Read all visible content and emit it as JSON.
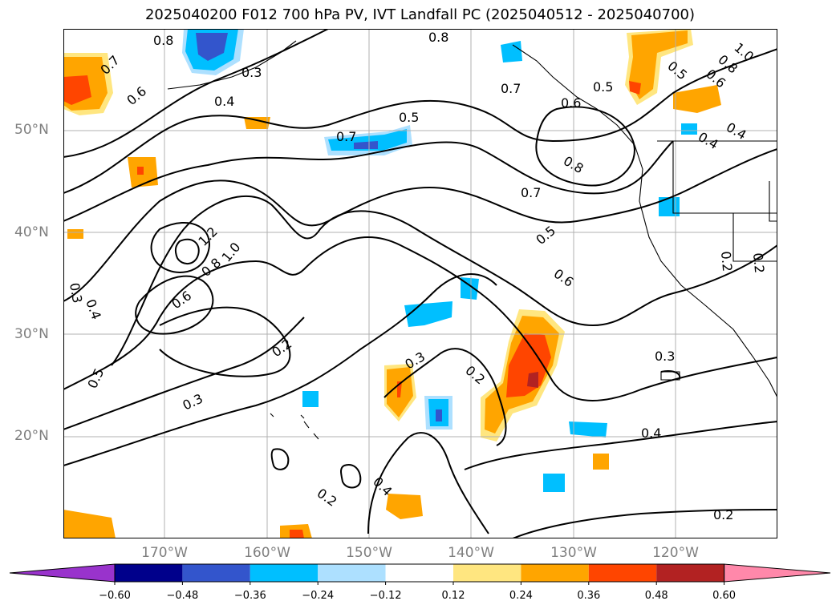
{
  "title": "2025040200 F012 700 hPa PV, IVT Landfall PC (2025040512 - 2025040700)",
  "lat_ticks": [
    "50°N",
    "40°N",
    "30°N",
    "20°N"
  ],
  "lon_ticks": [
    "170°W",
    "160°W",
    "150°W",
    "140°W",
    "130°W",
    "120°W"
  ],
  "contour_labels": [
    {
      "text": "0.8"
    },
    {
      "text": "0.7"
    },
    {
      "text": "0.6"
    },
    {
      "text": "0.3"
    },
    {
      "text": "0.4"
    },
    {
      "text": "0.8"
    },
    {
      "text": "0.7"
    },
    {
      "text": "0.6"
    },
    {
      "text": "0.5"
    },
    {
      "text": "0.5"
    },
    {
      "text": "0.6"
    },
    {
      "text": "0.8"
    },
    {
      "text": "1.0"
    },
    {
      "text": "0.4"
    },
    {
      "text": "0.4"
    },
    {
      "text": "0.7"
    },
    {
      "text": "0.5"
    },
    {
      "text": "0.8"
    },
    {
      "text": "0.7"
    },
    {
      "text": "0.5"
    },
    {
      "text": "0.6"
    },
    {
      "text": "1.2"
    },
    {
      "text": "1.0"
    },
    {
      "text": "0.8"
    },
    {
      "text": "0.6"
    },
    {
      "text": "0.3"
    },
    {
      "text": "0.4"
    },
    {
      "text": "0.5"
    },
    {
      "text": "0.2"
    },
    {
      "text": "0.3"
    },
    {
      "text": "0.3"
    },
    {
      "text": "0.2"
    },
    {
      "text": "0.4"
    },
    {
      "text": "0.2"
    },
    {
      "text": "0.3"
    },
    {
      "text": "0.4"
    },
    {
      "text": "0.2"
    },
    {
      "text": "0.2"
    },
    {
      "text": "0.2"
    }
  ],
  "colorbar": {
    "labels": [
      "−0.60",
      "−0.48",
      "−0.36",
      "−0.24",
      "−0.12",
      "0.12",
      "0.24",
      "0.36",
      "0.48",
      "0.60"
    ],
    "colors": [
      "#9933cc",
      "#00008b",
      "#3355cc",
      "#00bfff",
      "#ade0ff",
      "#ffffff",
      "#ffe680",
      "#ffa500",
      "#ff4500",
      "#b22222",
      "#ff88aa"
    ]
  }
}
